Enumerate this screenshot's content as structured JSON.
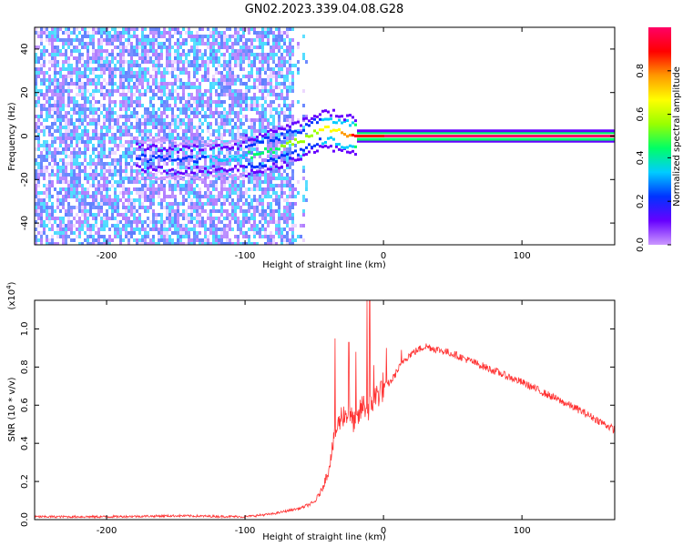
{
  "title": "GN02.2023.339.04.08.G28",
  "chart_data": [
    {
      "type": "heatmap",
      "xlabel": "Height of straight line (km)",
      "ylabel": "Frequency (Hz)",
      "xlim": [
        -252,
        167
      ],
      "ylim": [
        -50,
        50
      ],
      "x_ticks": [
        -200,
        -100,
        0,
        100
      ],
      "x_tick_labels": [
        "-200",
        "-100",
        "0",
        "100"
      ],
      "y_ticks": [
        -40,
        -20,
        0,
        20,
        40
      ],
      "y_tick_labels": [
        "-40",
        "-20",
        "0",
        "20",
        "40"
      ],
      "colorbar": {
        "label": "Normalized spectral amplitude",
        "range": [
          0,
          1
        ],
        "ticks": [
          0,
          0.2,
          0.4,
          0.6,
          0.8
        ],
        "tick_labels": [
          "0.0",
          "0.2",
          "0.4",
          "0.6",
          "0.8"
        ],
        "colors": [
          "#cc99ff",
          "#6600ff",
          "#0033ff",
          "#00ccff",
          "#00ff66",
          "#99ff00",
          "#ffff00",
          "#ff9900",
          "#ff0000",
          "#ff0066"
        ]
      },
      "ridge": {
        "x": [
          -180,
          -150,
          -110,
          -90,
          -75,
          -60,
          -50,
          -40,
          -30,
          -20,
          -10,
          0,
          10,
          50,
          100,
          167
        ],
        "freq": [
          -10,
          -11,
          -10,
          -8,
          -5,
          -2,
          2,
          3,
          1,
          0,
          0,
          0,
          0,
          0,
          0,
          0
        ],
        "amplitude": [
          0.2,
          0.25,
          0.3,
          0.45,
          0.5,
          0.55,
          0.6,
          0.65,
          0.75,
          0.9,
          0.9,
          0.95,
          1.0,
          1.0,
          1.0,
          1.0
        ]
      },
      "noise_extent_x": [
        -252,
        -65
      ],
      "grid": false
    },
    {
      "type": "line",
      "xlabel": "Height of straight line (km)",
      "ylabel": "SNR (10 * v/v)",
      "y_multiplier": "(x10",
      "y_multiplier_exp": "4",
      "y_multiplier_close": ")",
      "xlim": [
        -252,
        167
      ],
      "ylim": [
        0,
        1.15
      ],
      "x_ticks": [
        -200,
        -100,
        0,
        100
      ],
      "x_tick_labels": [
        "-200",
        "-100",
        "0",
        "100"
      ],
      "y_ticks": [
        0,
        0.2,
        0.4,
        0.6,
        0.8,
        1.0
      ],
      "y_tick_labels": [
        "0.0",
        "0.2",
        "0.4",
        "0.6",
        "0.8",
        "1.0"
      ],
      "color": "#ff3333",
      "x": [
        -252,
        -200,
        -150,
        -100,
        -80,
        -60,
        -50,
        -45,
        -40,
        -35,
        -30,
        -25,
        -20,
        -15,
        -10,
        -5,
        0,
        5,
        10,
        15,
        20,
        25,
        30,
        35,
        40,
        50,
        60,
        80,
        100,
        120,
        140,
        160,
        167
      ],
      "y": [
        0.015,
        0.015,
        0.02,
        0.015,
        0.03,
        0.06,
        0.09,
        0.15,
        0.25,
        0.45,
        0.55,
        0.55,
        0.5,
        0.6,
        0.58,
        0.65,
        0.7,
        0.72,
        0.78,
        0.84,
        0.87,
        0.89,
        0.91,
        0.9,
        0.89,
        0.87,
        0.84,
        0.78,
        0.72,
        0.65,
        0.58,
        0.5,
        0.47
      ],
      "spikes": [
        {
          "x": -35,
          "y": 0.95
        },
        {
          "x": -25,
          "y": 0.93
        },
        {
          "x": -20,
          "y": 0.88
        },
        {
          "x": -12,
          "y": 1.15
        },
        {
          "x": -10,
          "y": 1.15
        },
        {
          "x": -7,
          "y": 0.81
        },
        {
          "x": 2,
          "y": 0.9
        },
        {
          "x": 13,
          "y": 0.89
        }
      ],
      "grid": false
    }
  ]
}
